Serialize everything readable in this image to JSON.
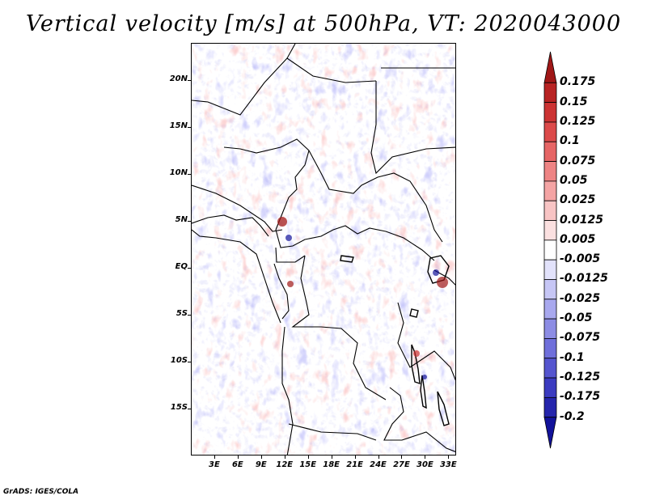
{
  "title": "Vertical velocity [m/s] at 500hPa, VT: 2020043000",
  "credit": "GrADS: IGES/COLA",
  "map": {
    "lon_range": [
      0,
      34
    ],
    "lat_range": [
      -20,
      24
    ],
    "lat_labels": [
      "20N",
      "15N",
      "10N",
      "5N",
      "EQ",
      "5S",
      "10S",
      "15S"
    ],
    "lat_values": [
      20,
      15,
      10,
      5,
      0,
      -5,
      -10,
      -15
    ],
    "lon_labels": [
      "3E",
      "6E",
      "9E",
      "12E",
      "15E",
      "18E",
      "21E",
      "24E",
      "27E",
      "30E",
      "33E"
    ],
    "lon_values": [
      3,
      6,
      9,
      12,
      15,
      18,
      21,
      24,
      27,
      30,
      33
    ]
  },
  "colorbar": {
    "labels": [
      "0.175",
      "0.15",
      "0.125",
      "0.1",
      "0.075",
      "0.05",
      "0.025",
      "0.0125",
      "0.005",
      "-0.005",
      "-0.0125",
      "-0.025",
      "-0.05",
      "-0.075",
      "-0.1",
      "-0.125",
      "-0.175",
      "-0.2"
    ],
    "colors": [
      "#a01717",
      "#b82323",
      "#cc3333",
      "#dc4a4a",
      "#e66565",
      "#ee8484",
      "#f4a4a4",
      "#f8c4c4",
      "#fbe0e0",
      "#ffffff",
      "#e2e2fb",
      "#c6c6f5",
      "#a8a8ee",
      "#8c8ce4",
      "#6f6fdb",
      "#5555cf",
      "#3b3bc0",
      "#2525ac",
      "#12129a"
    ]
  }
}
